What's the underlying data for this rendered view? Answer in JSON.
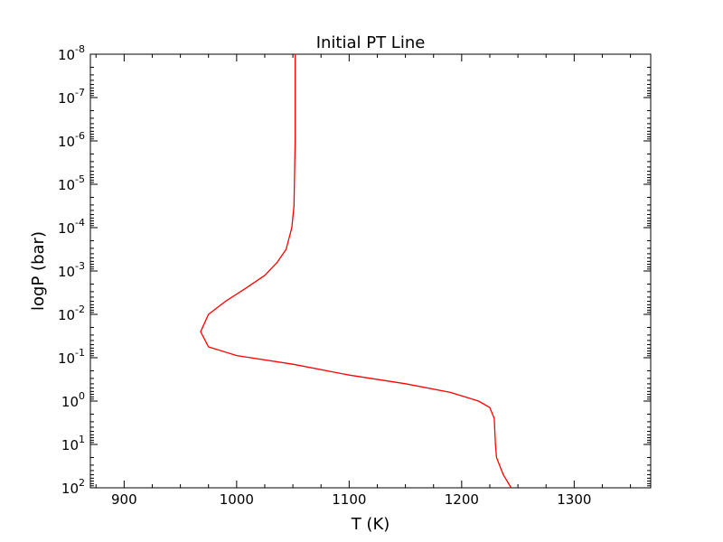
{
  "chart_data": {
    "type": "line",
    "title": "Initial PT Line",
    "xlabel": "T (K)",
    "ylabel": "logP (bar)",
    "xlim": [
      870,
      1368
    ],
    "ylim_log10": [
      -8,
      2
    ],
    "y_scale": "log",
    "y_inverted": true,
    "x_ticks": [
      900,
      1000,
      1100,
      1200,
      1300
    ],
    "x_tick_labels": [
      "900",
      "1000",
      "1100",
      "1200",
      "1300"
    ],
    "y_ticks": [
      {
        "base": "10",
        "exp": "-8"
      },
      {
        "base": "10",
        "exp": "-7"
      },
      {
        "base": "10",
        "exp": "-6"
      },
      {
        "base": "10",
        "exp": "-5"
      },
      {
        "base": "10",
        "exp": "-4"
      },
      {
        "base": "10",
        "exp": "-3"
      },
      {
        "base": "10",
        "exp": "-2"
      },
      {
        "base": "10",
        "exp": "-1"
      },
      {
        "base": "10",
        "exp": "0"
      },
      {
        "base": "10",
        "exp": "1"
      },
      {
        "base": "10",
        "exp": "2"
      }
    ],
    "grid": false,
    "series": [
      {
        "color": "#ff0000",
        "points": [
          {
            "T": 1052,
            "logP": -8.0
          },
          {
            "T": 1052,
            "logP": -6.0
          },
          {
            "T": 1051,
            "logP": -4.5
          },
          {
            "T": 1049,
            "logP": -4.0
          },
          {
            "T": 1044,
            "logP": -3.5
          },
          {
            "T": 1036,
            "logP": -3.2
          },
          {
            "T": 1025,
            "logP": -2.9
          },
          {
            "T": 1008,
            "logP": -2.6
          },
          {
            "T": 990,
            "logP": -2.3
          },
          {
            "T": 975,
            "logP": -2.0
          },
          {
            "T": 968,
            "logP": -1.6
          },
          {
            "T": 975,
            "logP": -1.25
          },
          {
            "T": 1000,
            "logP": -1.05
          },
          {
            "T": 1050,
            "logP": -0.85
          },
          {
            "T": 1100,
            "logP": -0.6
          },
          {
            "T": 1150,
            "logP": -0.4
          },
          {
            "T": 1190,
            "logP": -0.2
          },
          {
            "T": 1215,
            "logP": 0.0
          },
          {
            "T": 1225,
            "logP": 0.15
          },
          {
            "T": 1229,
            "logP": 0.4
          },
          {
            "T": 1230,
            "logP": 1.0
          },
          {
            "T": 1231,
            "logP": 1.3
          },
          {
            "T": 1237,
            "logP": 1.7
          },
          {
            "T": 1244,
            "logP": 2.0
          }
        ]
      }
    ]
  }
}
